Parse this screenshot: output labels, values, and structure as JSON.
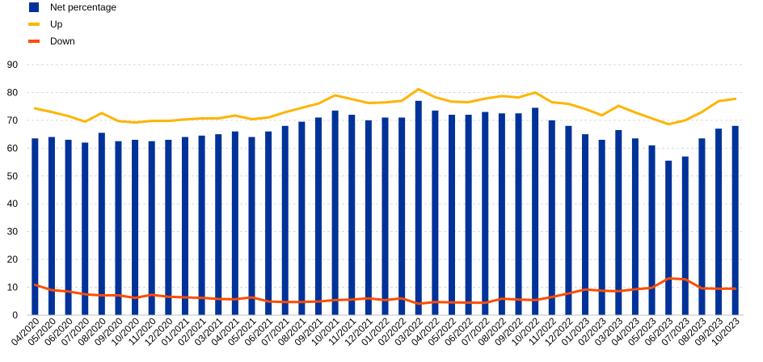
{
  "chart_data": {
    "type": "bar",
    "categories": [
      "04/2020",
      "05/2020",
      "06/2020",
      "07/2020",
      "08/2020",
      "09/2020",
      "10/2020",
      "11/2020",
      "12/2020",
      "01/2021",
      "02/2021",
      "03/2021",
      "04/2021",
      "05/2021",
      "06/2021",
      "07/2021",
      "08/2021",
      "09/2021",
      "10/2021",
      "11/2021",
      "12/2021",
      "01/2022",
      "02/2022",
      "03/2022",
      "04/2022",
      "05/2022",
      "06/2022",
      "07/2022",
      "08/2022",
      "09/2022",
      "10/2022",
      "11/2022",
      "12/2022",
      "01/2023",
      "02/2023",
      "03/2023",
      "04/2023",
      "05/2023",
      "06/2023",
      "07/2023",
      "08/2023",
      "09/2023",
      "10/2023"
    ],
    "series": [
      {
        "name": "Net percentage",
        "type": "bar",
        "color": "#003299",
        "values": [
          63.5,
          64,
          63,
          62,
          65.5,
          62.5,
          63,
          62.5,
          63,
          64,
          64.5,
          65,
          66,
          64,
          66,
          68,
          69.5,
          71,
          73.5,
          72,
          70,
          71,
          71,
          77,
          73.5,
          72,
          72,
          73,
          72.5,
          72.5,
          74.5,
          70,
          68,
          65,
          63,
          66.5,
          63.5,
          61,
          55.5,
          57,
          63.5,
          67,
          68
        ]
      },
      {
        "name": "Up",
        "type": "line",
        "color": "#ffb400",
        "values": [
          74.3,
          73,
          71.5,
          69.5,
          72.6,
          69.7,
          69.2,
          69.8,
          69.8,
          70.3,
          70.7,
          70.7,
          71.7,
          70.4,
          71,
          72.9,
          74.5,
          76,
          79,
          77.6,
          76.2,
          76.4,
          77,
          81.2,
          78.3,
          76.7,
          76.5,
          77.8,
          78.7,
          78.2,
          80,
          76.5,
          75.9,
          74.1,
          71.8,
          75.2,
          72.8,
          70.7,
          68.6,
          70,
          73,
          76.9,
          77.7
        ]
      },
      {
        "name": "Down",
        "type": "line",
        "color": "#ff4b00",
        "values": [
          10.9,
          9,
          8.5,
          7.5,
          7.1,
          7.1,
          6.2,
          7.3,
          6.6,
          6.4,
          6.2,
          5.8,
          5.7,
          6.4,
          4.9,
          4.7,
          4.7,
          4.9,
          5.4,
          5.6,
          6,
          5.4,
          6,
          4.1,
          4.7,
          4.6,
          4.5,
          4.4,
          5.9,
          5.6,
          5.4,
          6.5,
          7.8,
          9.2,
          8.8,
          8.6,
          9.3,
          9.8,
          13.2,
          12.9,
          9.6,
          9.5,
          9.5
        ]
      }
    ],
    "ylim": [
      0,
      90
    ],
    "yticks": [
      0,
      10,
      20,
      30,
      40,
      50,
      60,
      70,
      80,
      90
    ],
    "legend_position": "top-left",
    "grid": true
  }
}
